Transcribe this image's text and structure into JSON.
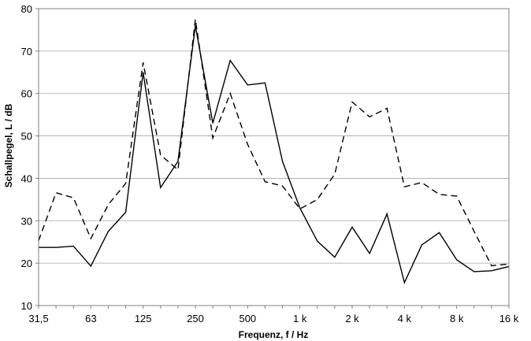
{
  "chart_data": {
    "type": "line",
    "xlabel": "Frequenz, f / Hz",
    "ylabel": "Schallpegel, L / dB",
    "x": [
      "31,5",
      "40",
      "50",
      "63",
      "80",
      "100",
      "125",
      "160",
      "200",
      "250",
      "315",
      "400",
      "500",
      "630",
      "800",
      "1 k",
      "1,25 k",
      "1,6 k",
      "2 k",
      "2,5 k",
      "3,15 k",
      "4 k",
      "5 k",
      "6,3 k",
      "8 k",
      "10 k",
      "12,5 k",
      "16 k"
    ],
    "xticks": [
      "31,5",
      "63",
      "125",
      "250",
      "500",
      "1 k",
      "2 k",
      "4 k",
      "8 k",
      "16 k"
    ],
    "yticks": [
      10,
      20,
      30,
      40,
      50,
      60,
      70,
      80
    ],
    "ylim": [
      10,
      80
    ],
    "grid": "horizontal",
    "series": [
      {
        "style": "solid",
        "color": "#000000",
        "values": [
          23.7,
          23.7,
          24.0,
          19.3,
          27.5,
          32.0,
          65.0,
          37.8,
          44.0,
          76.0,
          53.0,
          67.8,
          62.0,
          62.5,
          44.0,
          33.0,
          25.2,
          21.4,
          28.5,
          22.3,
          31.6,
          15.4,
          24.3,
          27.2,
          20.8,
          18.0,
          18.2,
          19.2
        ]
      },
      {
        "style": "dashed",
        "color": "#000000",
        "values": [
          25.3,
          36.6,
          35.4,
          25.8,
          33.8,
          38.8,
          67.3,
          45.5,
          42.0,
          77.5,
          49.5,
          60.0,
          48.0,
          39.2,
          38.2,
          32.8,
          35.0,
          41.0,
          58.0,
          54.5,
          56.5,
          38.0,
          39.0,
          36.2,
          35.8,
          27.5,
          19.4,
          19.8
        ]
      }
    ]
  }
}
